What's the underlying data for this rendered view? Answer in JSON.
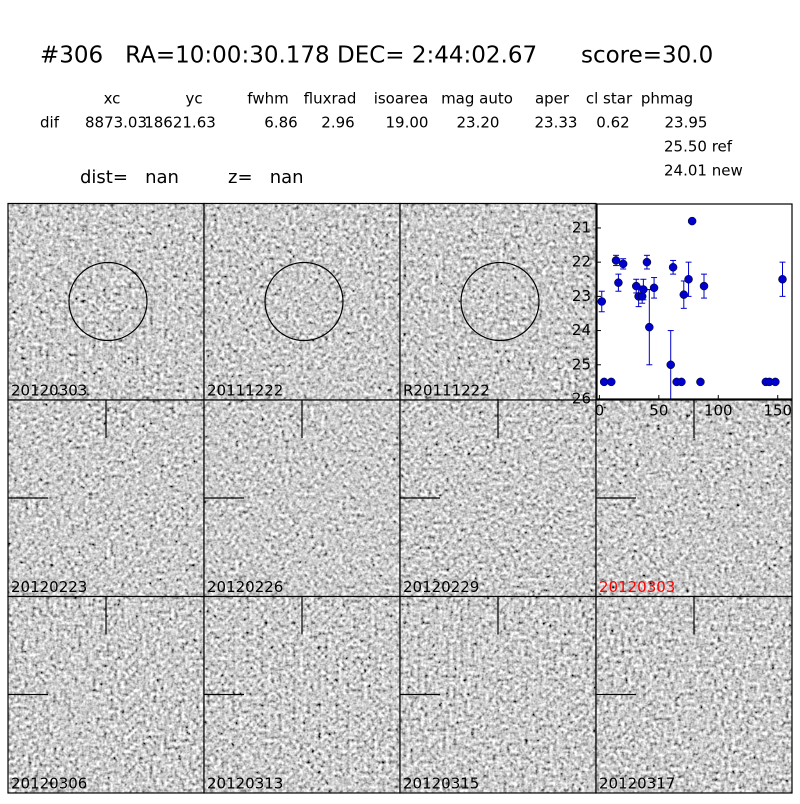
{
  "header": {
    "title": "#306   RA=10:00:30.178 DEC= 2:44:02.67      score=30.0",
    "columns": [
      "xc",
      "yc",
      "fwhm",
      "fluxrad",
      "isoarea",
      "mag auto",
      "aper",
      "cl star",
      "phmag"
    ],
    "row_label": "dif",
    "row_values": [
      "8873.03",
      "18621.63",
      "6.86",
      "2.96",
      "19.00",
      "23.20",
      "23.33",
      "0.62",
      "23.95"
    ],
    "ref": "25.50 ref",
    "new": "24.01 new",
    "dist": "dist=   nan",
    "z": "z=   nan"
  },
  "stamps": [
    {
      "label": "20120303"
    },
    {
      "label": "20111222"
    },
    {
      "label": "R20111222"
    },
    {
      "label": "20120223"
    },
    {
      "label": "20120226"
    },
    {
      "label": "20120229"
    },
    {
      "label": "20120303",
      "color": "#ff0000"
    },
    {
      "label": "20120306"
    },
    {
      "label": "20120313"
    },
    {
      "label": "20120315"
    },
    {
      "label": "20120317"
    }
  ],
  "chart_data": {
    "type": "scatter",
    "color": "#0000cc",
    "x": [
      2,
      4,
      10,
      14,
      16,
      20,
      31,
      33,
      36,
      37,
      40,
      42,
      46,
      60,
      62,
      65,
      69,
      71,
      75,
      78,
      85,
      88,
      140,
      143,
      148,
      154
    ],
    "values": [
      23.15,
      25.5,
      25.5,
      21.95,
      22.6,
      22.05,
      22.7,
      23.0,
      23.0,
      22.8,
      22.0,
      23.9,
      22.75,
      25.0,
      22.15,
      25.5,
      25.5,
      22.95,
      22.5,
      20.8,
      25.5,
      22.7,
      25.5,
      25.5,
      25.5,
      22.5
    ],
    "errors": [
      0.3,
      null,
      null,
      0.15,
      0.25,
      0.15,
      0.2,
      0.3,
      0.2,
      0.3,
      0.2,
      1.1,
      0.3,
      1.0,
      0.2,
      null,
      null,
      0.4,
      0.5,
      null,
      null,
      0.35,
      null,
      null,
      null,
      0.5
    ],
    "xlim": [
      -2,
      162
    ],
    "xticks": [
      0,
      50,
      100,
      150
    ],
    "ylim": [
      26,
      20.3
    ],
    "yticks": [
      21,
      22,
      23,
      24,
      25,
      26
    ],
    "inverted_y": true
  }
}
